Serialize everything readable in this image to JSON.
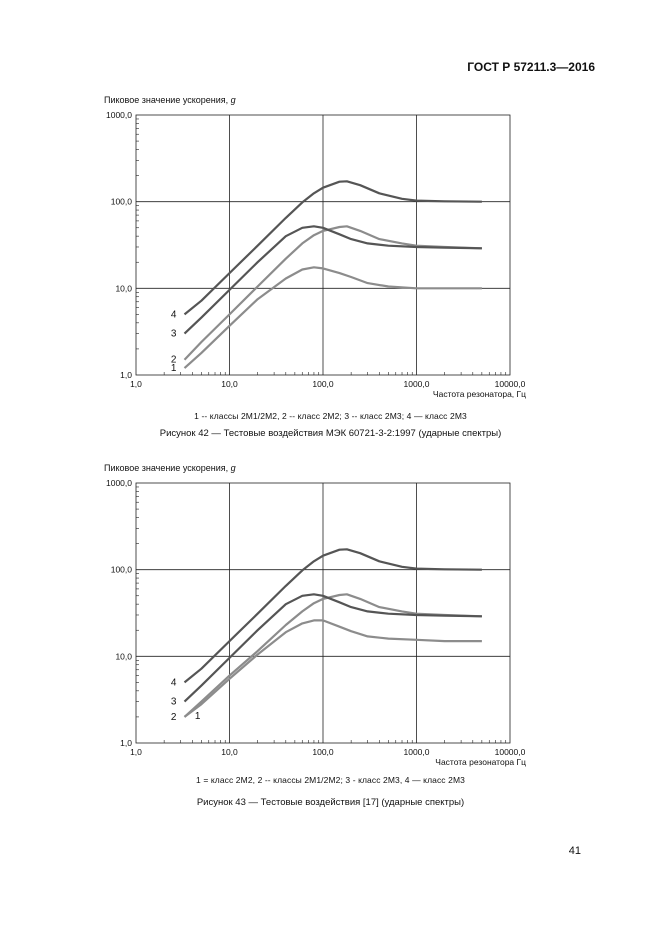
{
  "header": {
    "standard": "ГОСТ Р 57211.3—2016"
  },
  "page_number": "41",
  "figures": [
    {
      "ylabel_text": "Пиковое значение ускорения, ",
      "ylabel_unit": "g",
      "xlabel": "Частота резонатора, Гц",
      "legend": "1 -- классы 2М1/2М2, 2 -- класс 2М2; 3 -- класс 2М3; 4 — класс 2М3",
      "caption": "Рисунок 42 — Тестовые воздействия МЭК 60721-3-2:1997 (ударные спектры)"
    },
    {
      "ylabel_text": "Пиковое значение ускорения, ",
      "ylabel_unit": "g",
      "xlabel": "Частота резонатора  Гц",
      "legend": "1 = класс 2М2, 2 -- классы 2М1/2М2; 3 - класс 2М3, 4 — класс 2М3",
      "caption": "Рисунок 43 — Тестовые воздействия [17] (ударные спектры)"
    }
  ],
  "chart_data": [
    {
      "type": "line",
      "x_scale": "log",
      "y_scale": "log",
      "xlim": [
        1,
        10000
      ],
      "ylim": [
        1,
        1000
      ],
      "x_ticks": [
        "1,0",
        "10,0",
        "100,0",
        "1000,0",
        "10000,0"
      ],
      "y_ticks": [
        "1,0",
        "10,0",
        "100,0",
        "1000,0"
      ],
      "xlabel": "Частота резонатора, Гц",
      "ylabel": "Пиковое значение ускорения, g",
      "grid": true,
      "series": [
        {
          "name": "1",
          "color": "#8c8c8c",
          "x": [
            3.3,
            5,
            10,
            20,
            40,
            60,
            80,
            100,
            150,
            200,
            300,
            500,
            1000,
            2000,
            5000
          ],
          "y": [
            1.2,
            1.8,
            3.7,
            7.5,
            13,
            16.5,
            17.5,
            17,
            15,
            13.5,
            11.5,
            10.5,
            10,
            10,
            10
          ]
        },
        {
          "name": "2",
          "color": "#8c8c8c",
          "x": [
            3.3,
            5,
            10,
            20,
            40,
            60,
            80,
            100,
            150,
            180,
            250,
            400,
            700,
            1000,
            2000,
            5000
          ],
          "y": [
            1.5,
            2.4,
            5,
            10.5,
            22,
            33,
            41,
            46,
            51,
            52,
            46,
            37,
            33,
            31,
            30,
            29
          ]
        },
        {
          "name": "3",
          "color": "#555555",
          "x": [
            3.3,
            5,
            10,
            20,
            40,
            60,
            80,
            100,
            150,
            200,
            300,
            500,
            1000,
            2000,
            5000
          ],
          "y": [
            3,
            4.6,
            9.6,
            20,
            40,
            50,
            52,
            50,
            42,
            37,
            33,
            31,
            30,
            29.5,
            29
          ]
        },
        {
          "name": "4",
          "color": "#555555",
          "x": [
            3.3,
            5,
            10,
            20,
            40,
            60,
            80,
            100,
            150,
            180,
            250,
            400,
            700,
            1000,
            2000,
            5000
          ],
          "y": [
            5,
            7.2,
            15,
            31,
            65,
            98,
            125,
            145,
            170,
            172,
            155,
            125,
            108,
            103,
            101,
            100
          ]
        }
      ]
    },
    {
      "type": "line",
      "x_scale": "log",
      "y_scale": "log",
      "xlim": [
        1,
        10000
      ],
      "ylim": [
        1,
        1000
      ],
      "x_ticks": [
        "1,0",
        "10,0",
        "100,0",
        "1000,0",
        "10000,0"
      ],
      "y_ticks": [
        "1,0",
        "10,0",
        "100,0",
        "1000,0"
      ],
      "xlabel": "Частота резонатора  Гц",
      "ylabel": "Пиковое значение ускорения, g",
      "grid": true,
      "series": [
        {
          "name": "1",
          "color": "#8c8c8c",
          "x": [
            3.3,
            5,
            10,
            20,
            40,
            60,
            80,
            100,
            150,
            200,
            300,
            500,
            1000,
            2000,
            5000
          ],
          "y": [
            2,
            2.8,
            5.5,
            10.5,
            19,
            24,
            26,
            26,
            22,
            19.5,
            17,
            16,
            15.5,
            15,
            15
          ]
        },
        {
          "name": "2",
          "color": "#8c8c8c",
          "x": [
            3.3,
            5,
            10,
            20,
            40,
            60,
            80,
            100,
            150,
            180,
            250,
            400,
            700,
            1000,
            2000,
            5000
          ],
          "y": [
            2,
            3,
            6,
            11.5,
            23,
            33,
            41,
            46,
            51,
            52,
            46,
            37,
            33,
            31,
            30,
            29
          ]
        },
        {
          "name": "3",
          "color": "#555555",
          "x": [
            3.3,
            5,
            10,
            20,
            40,
            60,
            80,
            100,
            150,
            200,
            300,
            500,
            1000,
            2000,
            5000
          ],
          "y": [
            3,
            4.6,
            9.6,
            20,
            40,
            50,
            52,
            50,
            42,
            37,
            33,
            31,
            30,
            29.5,
            29
          ]
        },
        {
          "name": "4",
          "color": "#555555",
          "x": [
            3.3,
            5,
            10,
            20,
            40,
            60,
            80,
            100,
            150,
            180,
            250,
            400,
            700,
            1000,
            2000,
            5000
          ],
          "y": [
            5,
            7.2,
            15,
            31,
            65,
            98,
            125,
            145,
            170,
            172,
            155,
            125,
            108,
            103,
            101,
            100
          ]
        }
      ]
    }
  ]
}
